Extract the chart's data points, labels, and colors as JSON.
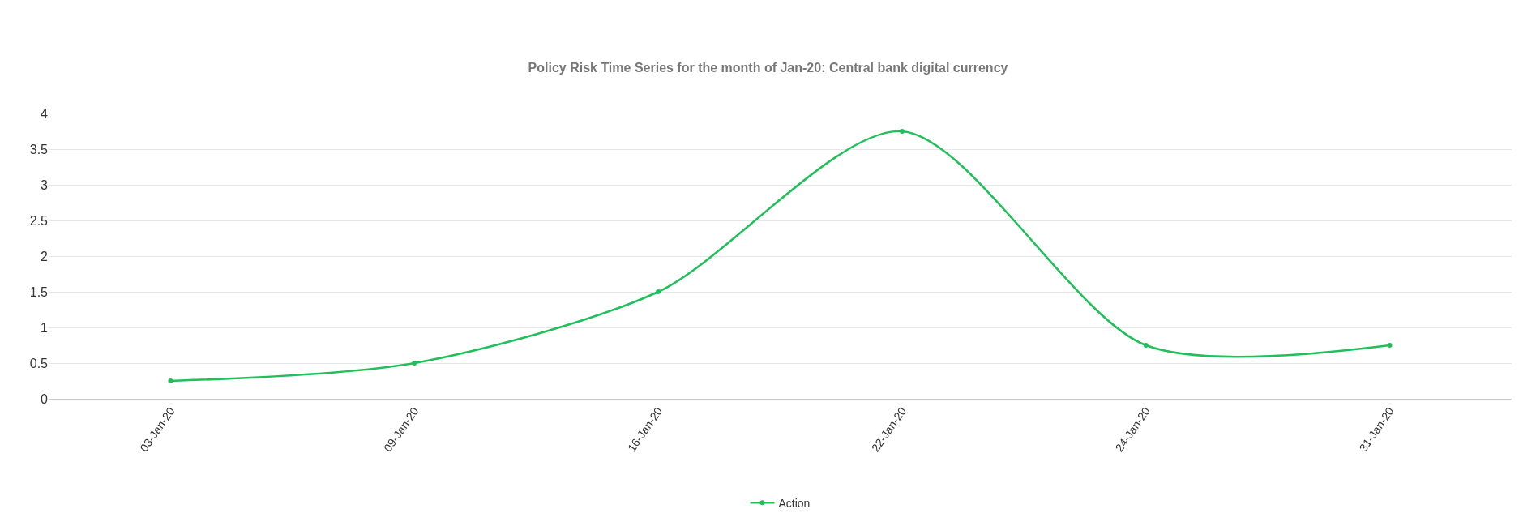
{
  "chart_data": {
    "type": "line",
    "title": "Policy Risk Time Series for the month of Jan-20: Central bank digital currency",
    "categories": [
      "03-Jan-20",
      "09-Jan-20",
      "16-Jan-20",
      "22-Jan-20",
      "24-Jan-20",
      "31-Jan-20"
    ],
    "series": [
      {
        "name": "Action",
        "color": "#1fbf5a",
        "values": [
          0.25,
          0.5,
          1.5,
          3.75,
          0.75,
          0.75
        ]
      }
    ],
    "ylim": [
      0,
      4
    ],
    "yticks": [
      0,
      0.5,
      1,
      1.5,
      2,
      2.5,
      3,
      3.5,
      4
    ],
    "grid": "y",
    "legend": "bottom",
    "marker": "circle",
    "line_style": "solid"
  }
}
